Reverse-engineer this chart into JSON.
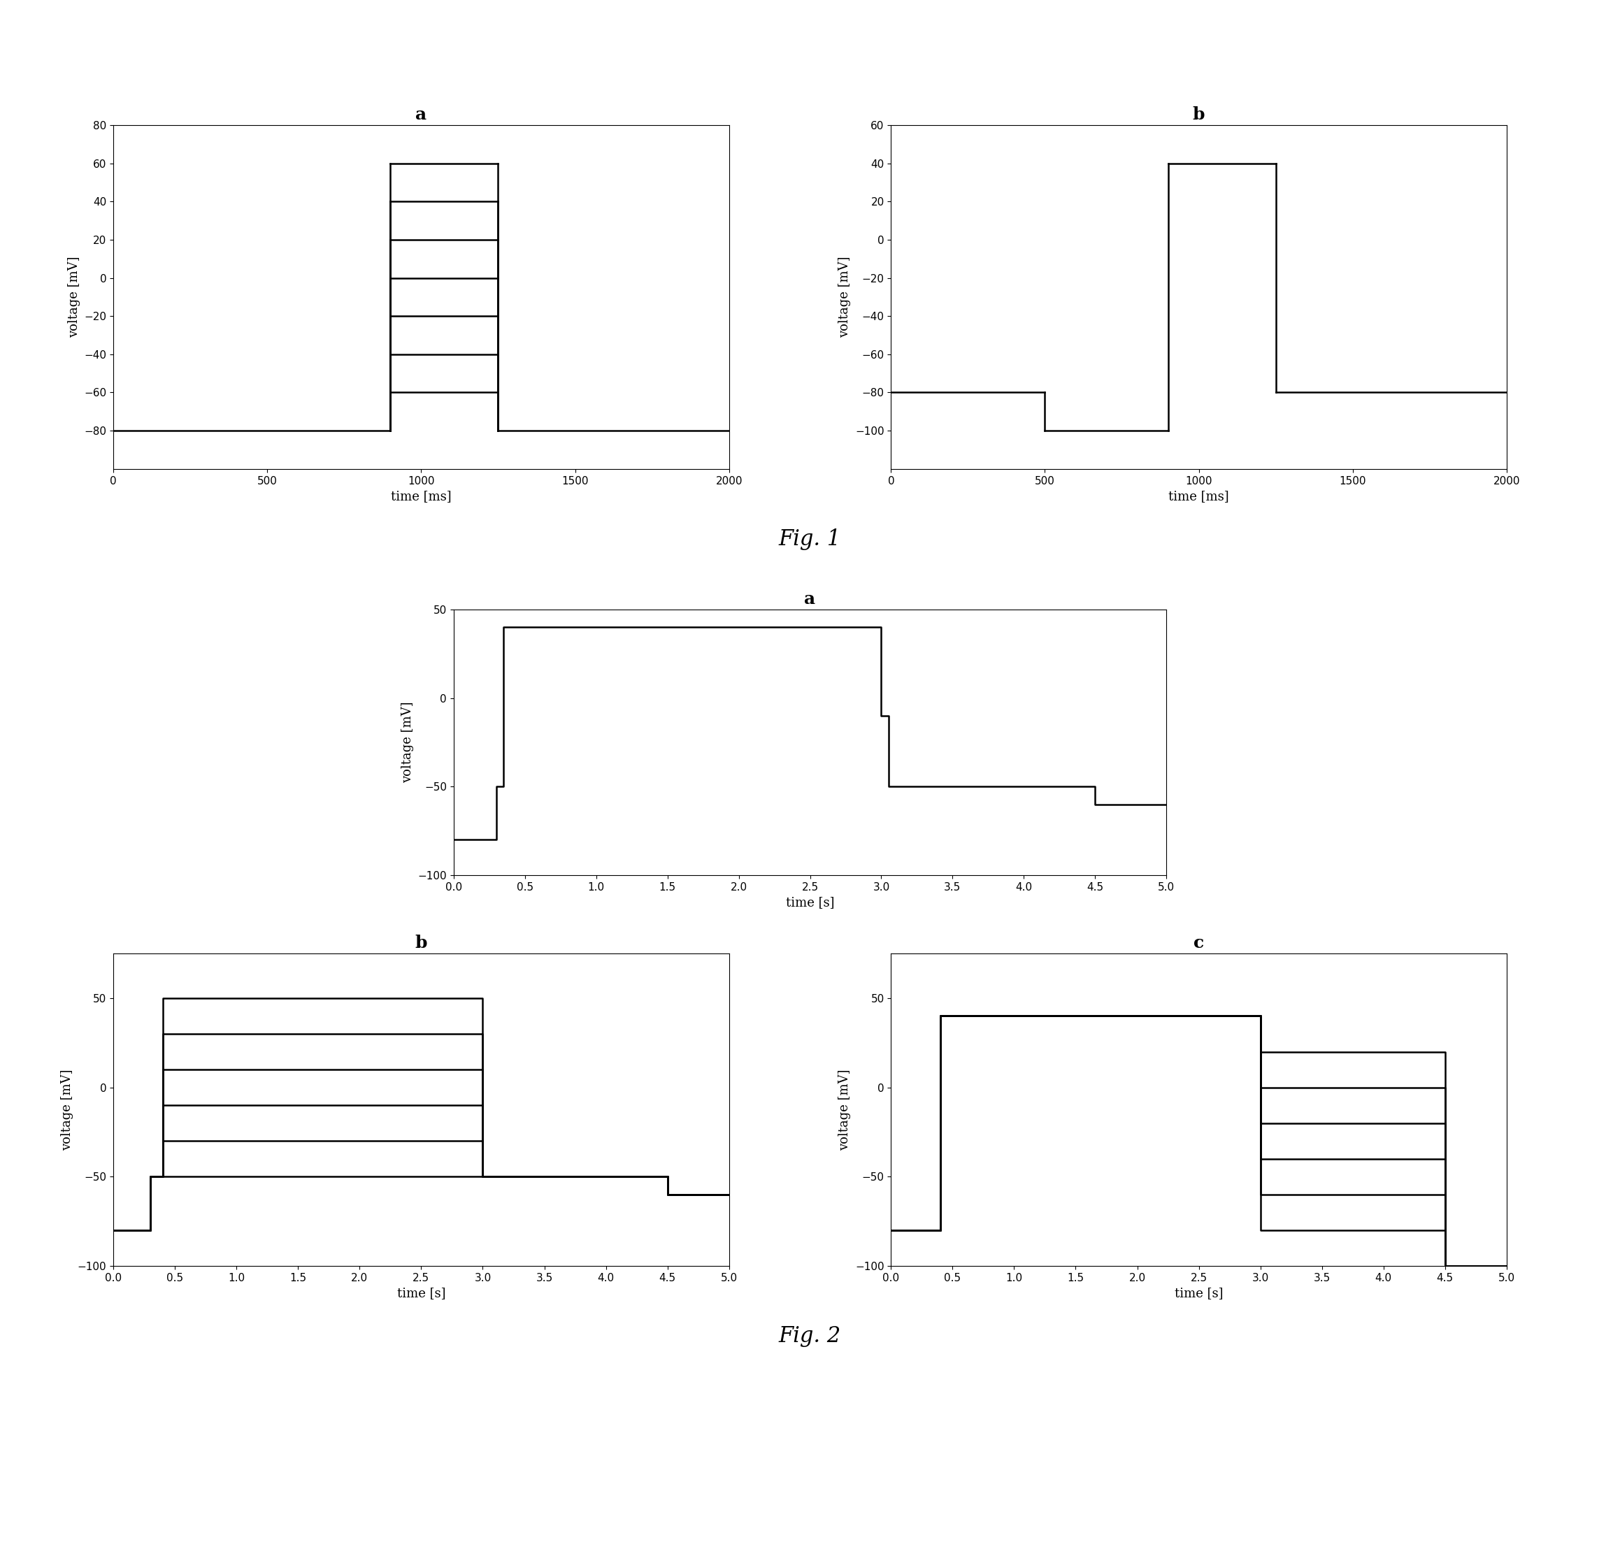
{
  "fig1_a": {
    "title": "a",
    "xlabel": "time [ms]",
    "ylabel": "voltage [mV]",
    "xlim": [
      0,
      2000
    ],
    "ylim": [
      -100,
      80
    ],
    "yticks": [
      -80,
      -60,
      -40,
      -20,
      0,
      20,
      40,
      60,
      80
    ],
    "xticks": [
      0,
      500,
      1000,
      1500,
      2000
    ],
    "step_levels": [
      60,
      40,
      20,
      0,
      -20,
      -40,
      -60
    ],
    "step_start": 900,
    "step_end": 1250,
    "baseline": -80,
    "post_level": -80
  },
  "fig1_b": {
    "title": "b",
    "xlabel": "time [ms]",
    "ylabel": "voltage [mV]",
    "xlim": [
      0,
      2000
    ],
    "ylim": [
      -120,
      60
    ],
    "yticks": [
      -100,
      -80,
      -60,
      -40,
      -20,
      0,
      20,
      40,
      60
    ],
    "xticks": [
      0,
      500,
      1000,
      1500,
      2000
    ],
    "baseline_level": -80,
    "prepulse_start": 500,
    "prepulse_end": 900,
    "prepulse_level": -100,
    "step_start": 900,
    "step_end": 1250,
    "step_level": 40,
    "post_level": -80
  },
  "fig2_a": {
    "title": "a",
    "xlabel": "time [s]",
    "ylabel": "voltage [mV]",
    "xlim": [
      0.0,
      5.0
    ],
    "ylim": [
      -100,
      50
    ],
    "yticks": [
      -100,
      -50,
      0,
      50
    ],
    "xticks": [
      0.0,
      0.5,
      1.0,
      1.5,
      2.0,
      2.5,
      3.0,
      3.5,
      4.0,
      4.5,
      5.0
    ],
    "waveform": [
      [
        0,
        -80
      ],
      [
        0.3,
        -80
      ],
      [
        0.3,
        -50
      ],
      [
        0.35,
        -50
      ],
      [
        0.35,
        40
      ],
      [
        3.0,
        40
      ],
      [
        3.0,
        -10
      ],
      [
        3.05,
        -10
      ],
      [
        3.05,
        -50
      ],
      [
        4.5,
        -50
      ],
      [
        4.5,
        -60
      ],
      [
        5.0,
        -60
      ]
    ]
  },
  "fig2_b": {
    "title": "b",
    "xlabel": "time [s]",
    "ylabel": "voltage [mV]",
    "xlim": [
      0.0,
      5.0
    ],
    "ylim": [
      -100,
      75
    ],
    "yticks": [
      -100,
      -50,
      0,
      50
    ],
    "xticks": [
      0.0,
      0.5,
      1.0,
      1.5,
      2.0,
      2.5,
      3.0,
      3.5,
      4.0,
      4.5,
      5.0
    ],
    "baseline_level": -80,
    "baseline_end": 0.3,
    "prepulse_level": -50,
    "prepulse_start": 0.3,
    "prepulse_end": 0.4,
    "step_levels": [
      50,
      30,
      10,
      -10,
      -30,
      -50
    ],
    "step_start": 0.4,
    "step_end": 3.0,
    "post_level": -50,
    "post_start": 3.0,
    "post_end": 4.5,
    "post2_level": -60,
    "post2_start": 4.5,
    "post2_end": 5.0
  },
  "fig2_c": {
    "title": "c",
    "xlabel": "time [s]",
    "ylabel": "voltage [mV]",
    "xlim": [
      0.0,
      5.0
    ],
    "ylim": [
      -100,
      75
    ],
    "yticks": [
      -100,
      -50,
      0,
      50
    ],
    "xticks": [
      0.0,
      0.5,
      1.0,
      1.5,
      2.0,
      2.5,
      3.0,
      3.5,
      4.0,
      4.5,
      5.0
    ],
    "baseline_level": -80,
    "baseline_end": 0.3,
    "prepulse_level": -80,
    "prepulse_start": 0.3,
    "prepulse_end": 0.4,
    "main_level": 40,
    "main_start": 0.4,
    "main_end": 3.0,
    "step_levels": [
      20,
      0,
      -20,
      -40,
      -60,
      -80
    ],
    "step_start": 3.0,
    "step_end": 4.5,
    "post_level": -100,
    "post_start": 4.5,
    "post_end": 5.0
  },
  "fig1_label": "Fig. 1",
  "fig2_label": "Fig. 2",
  "title_fontsize": 18,
  "label_fontsize": 13,
  "tick_fontsize": 11
}
